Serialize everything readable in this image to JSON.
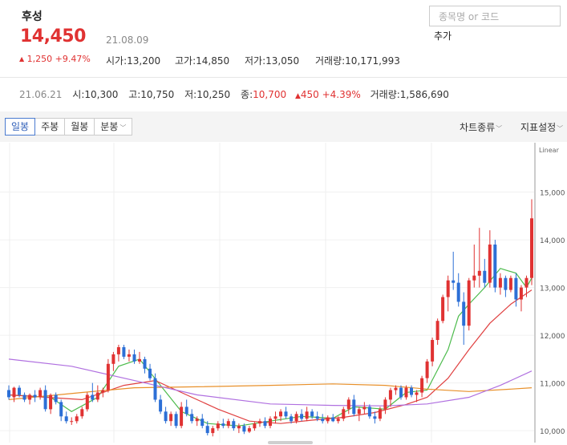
{
  "stock": {
    "name": "후성",
    "price": "14,450",
    "date": "21.08.09",
    "change_arrow": "▲",
    "change": "1,250 +9.47%",
    "open_label": "시가",
    "open": "13,200",
    "high_label": "고가",
    "high": "14,850",
    "low_label": "저가",
    "low": "13,050",
    "volume_label": "거래량",
    "volume": "10,171,993"
  },
  "search": {
    "placeholder": "종목명 or 코드",
    "add_label": "추가"
  },
  "prev_day": {
    "date": "21.06.21",
    "open_label": "시",
    "open": "10,300",
    "high_label": "고",
    "high": "10,750",
    "low_label": "저",
    "low": "10,250",
    "close_label": "종",
    "close": "10,700",
    "change_arrow": "▲",
    "change": "450 +4.39%",
    "volume_label": "거래량",
    "volume": "1,586,690"
  },
  "toolbar": {
    "tabs": [
      "일봉",
      "주봉",
      "월봉",
      "분봉"
    ],
    "active_tab": "일봉",
    "chart_type_label": "차트종류",
    "indicator_label": "지표설정"
  },
  "colors": {
    "up": "#e03232",
    "down": "#2c6fd6",
    "ma5": "#4cbb4c",
    "ma20": "#e04040",
    "ma60": "#e8902a",
    "ma120": "#b070e0"
  },
  "chart_data": {
    "type": "candlestick",
    "scale_label": "Linear",
    "y_ticks": [
      10000,
      11000,
      12000,
      13000,
      14000,
      15000
    ],
    "y_tick_labels": [
      "10,000",
      "11,000",
      "12,000",
      "13,000",
      "14,000",
      "15,000"
    ],
    "ylim": [
      9750,
      15900
    ],
    "candles": [
      [
        10850,
        10950,
        10650,
        10700
      ],
      [
        10700,
        10920,
        10600,
        10900
      ],
      [
        10900,
        10950,
        10700,
        10750
      ],
      [
        10750,
        10800,
        10600,
        10650
      ],
      [
        10650,
        10780,
        10550,
        10750
      ],
      [
        10750,
        10850,
        10600,
        10700
      ],
      [
        10700,
        10900,
        10650,
        10850
      ],
      [
        10850,
        10950,
        10400,
        10450
      ],
      [
        10450,
        10780,
        10350,
        10750
      ],
      [
        10750,
        10800,
        10550,
        10600
      ],
      [
        10600,
        10650,
        10200,
        10300
      ],
      [
        10300,
        10400,
        10150,
        10200
      ],
      [
        10200,
        10280,
        10120,
        10200
      ],
      [
        10200,
        10350,
        10150,
        10300
      ],
      [
        10300,
        10500,
        10250,
        10450
      ],
      [
        10450,
        10800,
        10400,
        10750
      ],
      [
        10750,
        11000,
        10600,
        10650
      ],
      [
        10650,
        10950,
        10600,
        10800
      ],
      [
        10800,
        10900,
        10700,
        10850
      ],
      [
        10850,
        11500,
        10800,
        11400
      ],
      [
        11400,
        11650,
        11250,
        11600
      ],
      [
        11600,
        11800,
        11450,
        11750
      ],
      [
        11750,
        11800,
        11500,
        11550
      ],
      [
        11550,
        11700,
        11450,
        11600
      ],
      [
        11600,
        11700,
        11400,
        11450
      ],
      [
        11450,
        11650,
        11400,
        11500
      ],
      [
        11500,
        11550,
        11200,
        11300
      ],
      [
        11300,
        11400,
        11050,
        11100
      ],
      [
        11100,
        11200,
        10600,
        10650
      ],
      [
        10650,
        10750,
        10350,
        10400
      ],
      [
        10400,
        10500,
        10150,
        10200
      ],
      [
        10200,
        10400,
        10100,
        10350
      ],
      [
        10350,
        10400,
        10050,
        10100
      ],
      [
        10100,
        10600,
        10050,
        10500
      ],
      [
        10500,
        10650,
        10300,
        10350
      ],
      [
        10350,
        10450,
        10150,
        10200
      ],
      [
        10200,
        10300,
        10100,
        10250
      ],
      [
        10250,
        10350,
        10050,
        10100
      ],
      [
        10100,
        10200,
        9900,
        9950
      ],
      [
        9950,
        10100,
        9880,
        10050
      ],
      [
        10050,
        10200,
        10000,
        10150
      ],
      [
        10150,
        10250,
        10050,
        10100
      ],
      [
        10100,
        10250,
        10050,
        10200
      ],
      [
        10200,
        10250,
        10000,
        10050
      ],
      [
        10050,
        10150,
        9950,
        10100
      ],
      [
        10100,
        10150,
        9930,
        9980
      ],
      [
        9980,
        10100,
        9950,
        10050
      ],
      [
        10050,
        10180,
        10000,
        10150
      ],
      [
        10150,
        10250,
        10080,
        10200
      ],
      [
        10200,
        10280,
        10050,
        10100
      ],
      [
        10100,
        10300,
        10050,
        10250
      ],
      [
        10250,
        10400,
        10150,
        10300
      ],
      [
        10300,
        10450,
        10200,
        10400
      ],
      [
        10400,
        10500,
        10250,
        10300
      ],
      [
        10300,
        10350,
        10150,
        10200
      ],
      [
        10200,
        10400,
        10150,
        10350
      ],
      [
        10350,
        10450,
        10200,
        10250
      ],
      [
        10250,
        10500,
        10200,
        10400
      ],
      [
        10400,
        10450,
        10250,
        10300
      ],
      [
        10300,
        10400,
        10200,
        10250
      ],
      [
        10250,
        10350,
        10150,
        10200
      ],
      [
        10200,
        10320,
        10150,
        10280
      ],
      [
        10280,
        10350,
        10180,
        10200
      ],
      [
        10200,
        10300,
        10150,
        10250
      ],
      [
        10250,
        10500,
        10200,
        10450
      ],
      [
        10450,
        10700,
        10350,
        10650
      ],
      [
        10650,
        10750,
        10300,
        10350
      ],
      [
        10350,
        10500,
        10200,
        10450
      ],
      [
        10450,
        10600,
        10350,
        10500
      ],
      [
        10500,
        10550,
        10250,
        10300
      ],
      [
        10300,
        10400,
        10150,
        10250
      ],
      [
        10250,
        10500,
        10200,
        10450
      ],
      [
        10450,
        10700,
        10350,
        10650
      ],
      [
        10650,
        10900,
        10500,
        10850
      ],
      [
        10850,
        10950,
        10750,
        10900
      ],
      [
        10900,
        10950,
        10650,
        10700
      ],
      [
        10700,
        10950,
        10650,
        10900
      ],
      [
        10900,
        10950,
        10700,
        10750
      ],
      [
        10750,
        10850,
        10600,
        10800
      ],
      [
        10800,
        11150,
        10700,
        11100
      ],
      [
        11100,
        11500,
        11000,
        11450
      ],
      [
        11450,
        11950,
        11350,
        11900
      ],
      [
        11900,
        12350,
        11800,
        12300
      ],
      [
        12300,
        12850,
        12250,
        12800
      ],
      [
        12800,
        13250,
        12500,
        13150
      ],
      [
        13150,
        13750,
        12950,
        13100
      ],
      [
        13100,
        13300,
        12600,
        12700
      ],
      [
        12700,
        12900,
        11800,
        12200
      ],
      [
        12200,
        13200,
        12100,
        13150
      ],
      [
        13150,
        13900,
        13000,
        13250
      ],
      [
        13250,
        14250,
        13000,
        13350
      ],
      [
        13350,
        13600,
        13000,
        13100
      ],
      [
        13100,
        14200,
        13000,
        13900
      ],
      [
        13900,
        14000,
        12900,
        13000
      ],
      [
        13000,
        13300,
        12850,
        13200
      ],
      [
        13200,
        13250,
        12800,
        12950
      ],
      [
        12950,
        13250,
        12900,
        13200
      ],
      [
        13200,
        13300,
        12600,
        12750
      ],
      [
        12750,
        13050,
        12500,
        13000
      ],
      [
        13000,
        13250,
        12800,
        13200
      ],
      [
        13200,
        14850,
        13050,
        14450
      ]
    ],
    "ma_lines": [
      {
        "key": "ma5",
        "values": [
          [
            0,
            10750
          ],
          [
            8,
            10700
          ],
          [
            12,
            10400
          ],
          [
            17,
            10700
          ],
          [
            21,
            11350
          ],
          [
            25,
            11500
          ],
          [
            29,
            10950
          ],
          [
            33,
            10400
          ],
          [
            38,
            10150
          ],
          [
            44,
            10100
          ],
          [
            50,
            10200
          ],
          [
            56,
            10300
          ],
          [
            62,
            10260
          ],
          [
            66,
            10500
          ],
          [
            72,
            10450
          ],
          [
            76,
            10800
          ],
          [
            80,
            10850
          ],
          [
            84,
            11700
          ],
          [
            86,
            12400
          ],
          [
            88,
            12650
          ],
          [
            91,
            13000
          ],
          [
            94,
            13400
          ],
          [
            97,
            13300
          ],
          [
            99,
            13000
          ],
          [
            100,
            13200
          ]
        ]
      },
      {
        "key": "ma20",
        "values": [
          [
            0,
            10750
          ],
          [
            14,
            10650
          ],
          [
            22,
            10950
          ],
          [
            28,
            11050
          ],
          [
            34,
            10750
          ],
          [
            40,
            10450
          ],
          [
            46,
            10200
          ],
          [
            52,
            10150
          ],
          [
            58,
            10220
          ],
          [
            64,
            10280
          ],
          [
            70,
            10380
          ],
          [
            76,
            10550
          ],
          [
            80,
            10700
          ],
          [
            84,
            11100
          ],
          [
            88,
            11700
          ],
          [
            92,
            12250
          ],
          [
            96,
            12650
          ],
          [
            100,
            12950
          ]
        ]
      },
      {
        "key": "ma60",
        "values": [
          [
            0,
            10650
          ],
          [
            14,
            10800
          ],
          [
            24,
            10900
          ],
          [
            36,
            10920
          ],
          [
            50,
            10950
          ],
          [
            62,
            10980
          ],
          [
            72,
            10950
          ],
          [
            80,
            10870
          ],
          [
            88,
            10820
          ],
          [
            96,
            10870
          ],
          [
            100,
            10900
          ]
        ]
      },
      {
        "key": "ma120",
        "values": [
          [
            0,
            11500
          ],
          [
            12,
            11350
          ],
          [
            24,
            11050
          ],
          [
            36,
            10750
          ],
          [
            50,
            10560
          ],
          [
            62,
            10530
          ],
          [
            72,
            10520
          ],
          [
            80,
            10560
          ],
          [
            88,
            10700
          ],
          [
            94,
            10950
          ],
          [
            100,
            11250
          ]
        ]
      }
    ]
  }
}
